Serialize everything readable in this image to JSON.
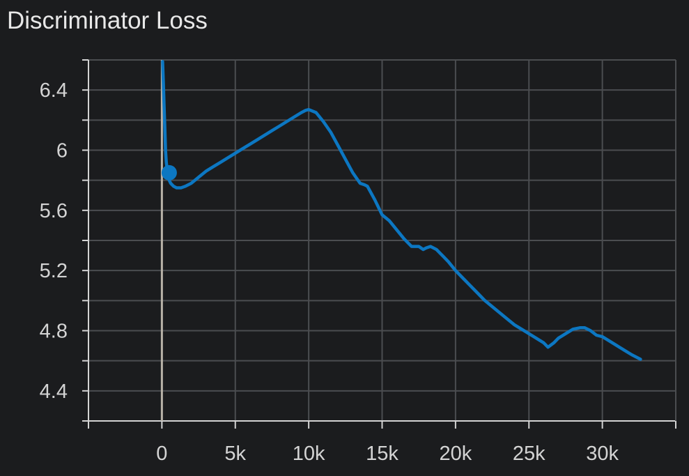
{
  "chart_data": {
    "type": "line",
    "title": "Discriminator Loss",
    "xlabel": "",
    "ylabel": "",
    "xlim": [
      -5000,
      35000
    ],
    "ylim": [
      4.2,
      6.6
    ],
    "grid": true,
    "x_ticks": [
      0,
      5000,
      10000,
      15000,
      20000,
      25000,
      30000
    ],
    "x_tick_labels": [
      "0",
      "5k",
      "10k",
      "15k",
      "20k",
      "25k",
      "30k"
    ],
    "y_ticks": [
      4.4,
      4.8,
      5.2,
      5.6,
      6.0,
      6.4
    ],
    "y_tick_labels": [
      "4.4",
      "4.8",
      "5.2",
      "5.6",
      "6",
      "6.4"
    ],
    "colors": {
      "background": "#1b1c1e",
      "grid": "#4b4d50",
      "axis": "#d4d4d4",
      "zero_line": "#b8b2a8",
      "series": "#0c77c2"
    },
    "series": [
      {
        "name": "",
        "x": [
          50,
          100,
          150,
          200,
          250,
          300,
          400,
          500,
          600,
          800,
          1000,
          1300,
          1600,
          2000,
          2500,
          3000,
          3500,
          4000,
          4500,
          5000,
          5500,
          6000,
          6500,
          7000,
          7500,
          8000,
          8500,
          9000,
          9500,
          9800,
          10000,
          10500,
          11000,
          11500,
          12000,
          12500,
          13000,
          13500,
          13800,
          14000,
          14500,
          15000,
          15500,
          16000,
          16500,
          17000,
          17500,
          17800,
          18000,
          18300,
          18700,
          19000,
          19500,
          20000,
          20500,
          21000,
          21500,
          22000,
          22500,
          23000,
          23500,
          24000,
          24500,
          25000,
          25500,
          26000,
          26300,
          26700,
          27000,
          27500,
          28000,
          28500,
          28800,
          29200,
          29600,
          30000,
          30500,
          31000,
          31500,
          32000,
          32600
        ],
        "y": [
          6.59,
          6.45,
          6.3,
          6.15,
          6.0,
          5.92,
          5.84,
          5.8,
          5.78,
          5.76,
          5.75,
          5.75,
          5.76,
          5.78,
          5.82,
          5.86,
          5.89,
          5.92,
          5.95,
          5.98,
          6.01,
          6.04,
          6.07,
          6.1,
          6.13,
          6.16,
          6.19,
          6.22,
          6.25,
          6.265,
          6.27,
          6.25,
          6.19,
          6.12,
          6.03,
          5.94,
          5.85,
          5.78,
          5.77,
          5.76,
          5.67,
          5.57,
          5.53,
          5.47,
          5.41,
          5.36,
          5.36,
          5.34,
          5.35,
          5.36,
          5.34,
          5.31,
          5.26,
          5.2,
          5.15,
          5.1,
          5.05,
          5.0,
          4.96,
          4.92,
          4.88,
          4.84,
          4.81,
          4.78,
          4.75,
          4.72,
          4.69,
          4.72,
          4.75,
          4.78,
          4.81,
          4.82,
          4.82,
          4.8,
          4.77,
          4.76,
          4.73,
          4.7,
          4.67,
          4.64,
          4.61
        ]
      }
    ],
    "marker": {
      "x": 500,
      "y": 5.85
    }
  }
}
